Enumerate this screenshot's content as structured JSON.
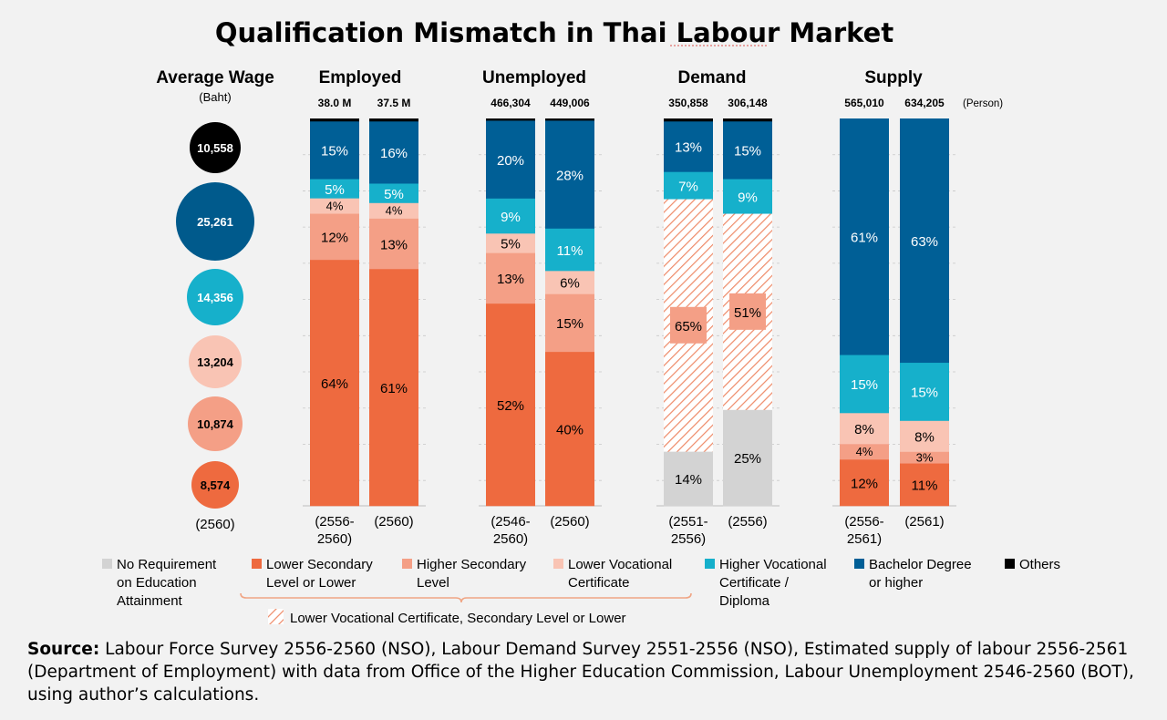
{
  "title": "Qualification Mismatch in Thai Labour Market",
  "unit": "(Person)",
  "wage": {
    "title": "Average Wage",
    "unit": "(Baht)",
    "year": "(2560)",
    "values": [
      "10,558",
      "25,261",
      "14,356",
      "13,204",
      "10,874",
      "8,574"
    ],
    "colors": [
      "#000000",
      "#005a8c",
      "#16b0cb",
      "#f9c4b4",
      "#f49f86",
      "#ee6a3f"
    ]
  },
  "colors": {
    "no_req": "#d3d3d3",
    "lower_sec": "#ee6a3f",
    "higher_sec": "#f49f86",
    "lower_voc": "#f9c4b4",
    "higher_voc": "#16b0cb",
    "bachelor": "#005f96",
    "others": "#000000",
    "hatch": "#ee7d5a"
  },
  "chart_data": {
    "type": "bar",
    "stacked": true,
    "normalized_percent": true,
    "series_order": [
      "no_req",
      "lower_sec",
      "higher_sec",
      "lower_voc",
      "hatch",
      "higher_voc",
      "bachelor",
      "others"
    ],
    "groups": [
      {
        "name": "Employed",
        "bars": [
          {
            "total": "38.0 M",
            "period": [
              "(2556-",
              "2560)"
            ],
            "segments": [
              {
                "key": "lower_sec",
                "value": 64,
                "label": "64%"
              },
              {
                "key": "higher_sec",
                "value": 12,
                "label": "12%"
              },
              {
                "key": "lower_voc",
                "value": 4,
                "label": "4%"
              },
              {
                "key": "higher_voc",
                "value": 5,
                "label": "5%"
              },
              {
                "key": "bachelor",
                "value": 15,
                "label": "15%"
              },
              {
                "key": "others",
                "value": 0.7,
                "label": ""
              }
            ]
          },
          {
            "total": "37.5 M",
            "period": [
              "(2560)"
            ],
            "segments": [
              {
                "key": "lower_sec",
                "value": 61,
                "label": "61%"
              },
              {
                "key": "higher_sec",
                "value": 13,
                "label": "13%"
              },
              {
                "key": "lower_voc",
                "value": 4,
                "label": "4%"
              },
              {
                "key": "higher_voc",
                "value": 5,
                "label": "5%"
              },
              {
                "key": "bachelor",
                "value": 16,
                "label": "16%"
              },
              {
                "key": "others",
                "value": 0.7,
                "label": ""
              }
            ]
          }
        ]
      },
      {
        "name": "Unemployed",
        "bars": [
          {
            "total": "466,304",
            "period": [
              "(2546-",
              "2560)"
            ],
            "segments": [
              {
                "key": "lower_sec",
                "value": 52,
                "label": "52%"
              },
              {
                "key": "higher_sec",
                "value": 13,
                "label": "13%"
              },
              {
                "key": "lower_voc",
                "value": 5,
                "label": "5%"
              },
              {
                "key": "higher_voc",
                "value": 9,
                "label": "9%"
              },
              {
                "key": "bachelor",
                "value": 20,
                "label": "20%"
              },
              {
                "key": "others",
                "value": 0.5,
                "label": ""
              }
            ]
          },
          {
            "total": "449,006",
            "period": [
              "(2560)"
            ],
            "segments": [
              {
                "key": "lower_sec",
                "value": 40,
                "label": "40%"
              },
              {
                "key": "higher_sec",
                "value": 15,
                "label": "15%"
              },
              {
                "key": "lower_voc",
                "value": 6,
                "label": "6%"
              },
              {
                "key": "higher_voc",
                "value": 11,
                "label": "11%"
              },
              {
                "key": "bachelor",
                "value": 28,
                "label": "28%"
              },
              {
                "key": "others",
                "value": 0.5,
                "label": ""
              }
            ]
          }
        ]
      },
      {
        "name": "Demand",
        "bars": [
          {
            "total": "350,858",
            "period": [
              "(2551-",
              "2556)"
            ],
            "segments": [
              {
                "key": "no_req",
                "value": 14,
                "label": "14%"
              },
              {
                "key": "hatch",
                "value": 65,
                "label": "65%"
              },
              {
                "key": "higher_voc",
                "value": 7,
                "label": "7%"
              },
              {
                "key": "bachelor",
                "value": 13,
                "label": "13%"
              },
              {
                "key": "others",
                "value": 0.7,
                "label": ""
              }
            ]
          },
          {
            "total": "306,148",
            "period": [
              "(2556)"
            ],
            "segments": [
              {
                "key": "no_req",
                "value": 25,
                "label": "25%"
              },
              {
                "key": "hatch",
                "value": 51,
                "label": "51%"
              },
              {
                "key": "higher_voc",
                "value": 9,
                "label": "9%"
              },
              {
                "key": "bachelor",
                "value": 15,
                "label": "15%"
              },
              {
                "key": "others",
                "value": 0.7,
                "label": ""
              }
            ]
          }
        ]
      },
      {
        "name": "Supply",
        "bars": [
          {
            "total": "565,010",
            "period": [
              "(2556-",
              "2561)"
            ],
            "segments": [
              {
                "key": "lower_sec",
                "value": 12,
                "label": "12%"
              },
              {
                "key": "higher_sec",
                "value": 4,
                "label": "4%"
              },
              {
                "key": "lower_voc",
                "value": 8,
                "label": "8%"
              },
              {
                "key": "higher_voc",
                "value": 15,
                "label": "15%"
              },
              {
                "key": "bachelor",
                "value": 61,
                "label": "61%"
              }
            ]
          },
          {
            "total": "634,205",
            "period": [
              "(2561)"
            ],
            "segments": [
              {
                "key": "lower_sec",
                "value": 11,
                "label": "11%"
              },
              {
                "key": "higher_sec",
                "value": 3,
                "label": "3%"
              },
              {
                "key": "lower_voc",
                "value": 8,
                "label": "8%"
              },
              {
                "key": "higher_voc",
                "value": 15,
                "label": "15%"
              },
              {
                "key": "bachelor",
                "value": 63,
                "label": "63%"
              }
            ]
          }
        ]
      }
    ]
  },
  "legend": [
    {
      "key": "no_req",
      "lines": [
        "No Requirement",
        "on Education",
        "Attainment"
      ]
    },
    {
      "key": "lower_sec",
      "lines": [
        "Lower Secondary",
        "Level or Lower"
      ]
    },
    {
      "key": "higher_sec",
      "lines": [
        "Higher Secondary",
        "Level"
      ]
    },
    {
      "key": "lower_voc",
      "lines": [
        "Lower Vocational",
        "Certificate"
      ]
    },
    {
      "key": "higher_voc",
      "lines": [
        "Higher Vocational",
        "Certificate /",
        "Diploma"
      ]
    },
    {
      "key": "bachelor",
      "lines": [
        "Bachelor Degree",
        "or higher"
      ]
    },
    {
      "key": "others",
      "lines": [
        "Others"
      ]
    }
  ],
  "legend_hatch": "Lower Vocational Certificate, Secondary Level or Lower",
  "source": {
    "label": "Source:",
    "text": "Labour Force Survey 2556-2560 (NSO), Labour Demand Survey 2551-2556 (NSO), Estimated supply of labour 2556-2561 (Department of Employment) with data from Office of the Higher Education Commission, Labour Unemployment 2546-2560 (BOT), using author’s calculations."
  }
}
